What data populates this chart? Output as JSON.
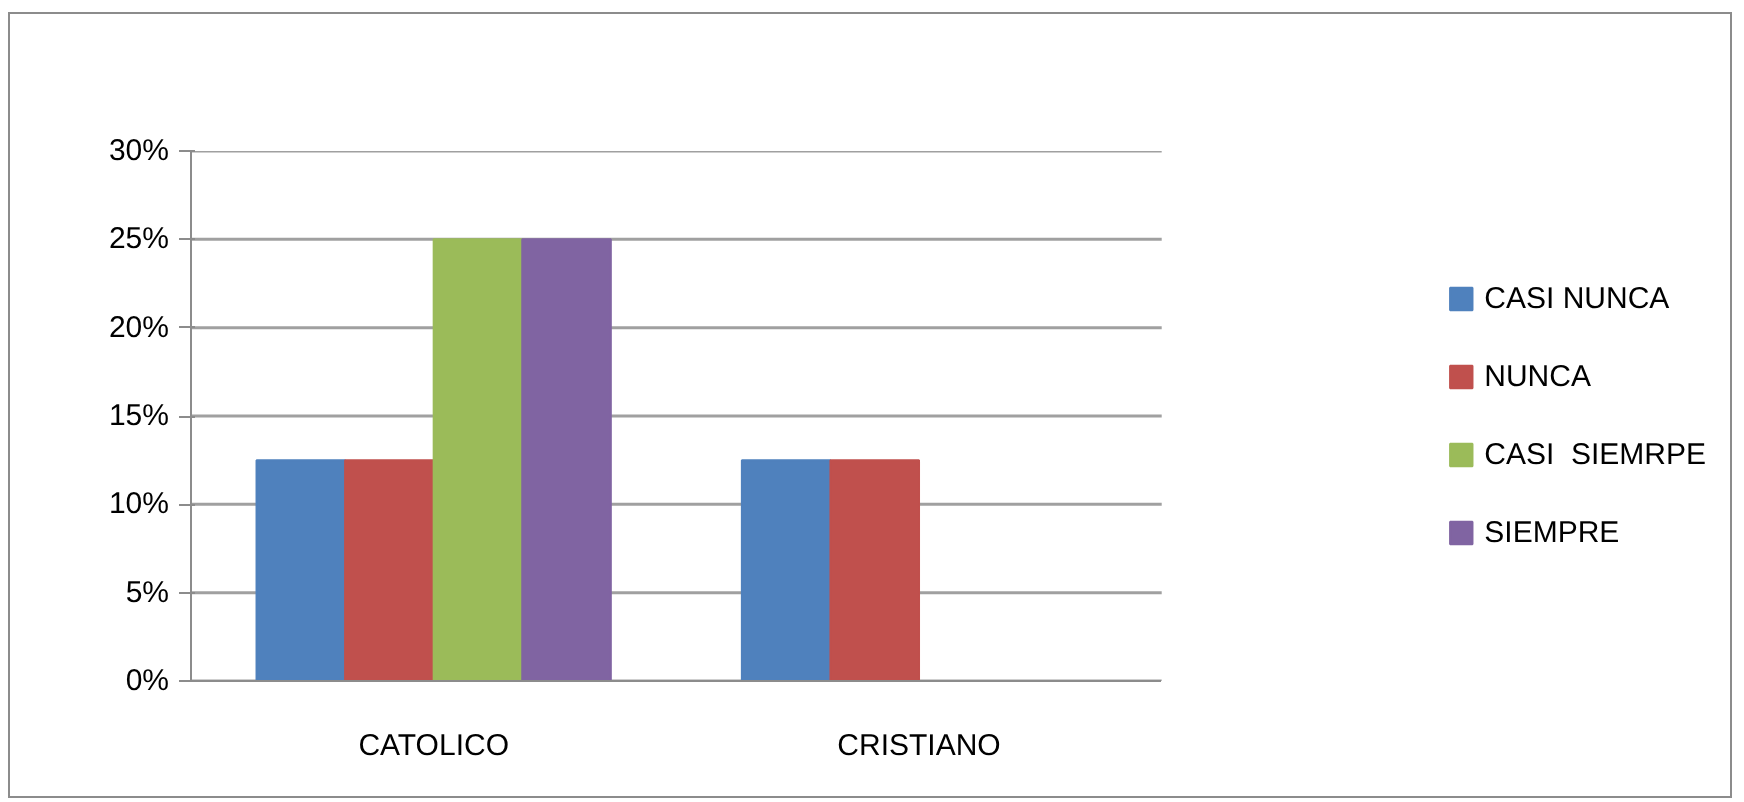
{
  "chart_data": {
    "type": "bar",
    "categories": [
      "CATOLICO",
      "CRISTIANO"
    ],
    "series": [
      {
        "name": "CASI NUNCA",
        "color": "#4f81bd",
        "values": [
          12.5,
          12.5
        ]
      },
      {
        "name": "NUNCA",
        "color": "#c0504d",
        "values": [
          12.5,
          12.5
        ]
      },
      {
        "name": "CASI  SIEMRPE",
        "color": "#9bbb59",
        "values": [
          25,
          0
        ]
      },
      {
        "name": "SIEMPRE",
        "color": "#8064a2",
        "values": [
          25,
          0
        ]
      }
    ],
    "ylim": [
      0,
      30
    ],
    "yticks": [
      {
        "value": 0,
        "label": "0%"
      },
      {
        "value": 5,
        "label": "5%"
      },
      {
        "value": 10,
        "label": "10%"
      },
      {
        "value": 15,
        "label": "15%"
      },
      {
        "value": 20,
        "label": "20%"
      },
      {
        "value": 25,
        "label": "25%"
      },
      {
        "value": 30,
        "label": "30%"
      }
    ],
    "grid": "y",
    "legend": "right"
  }
}
